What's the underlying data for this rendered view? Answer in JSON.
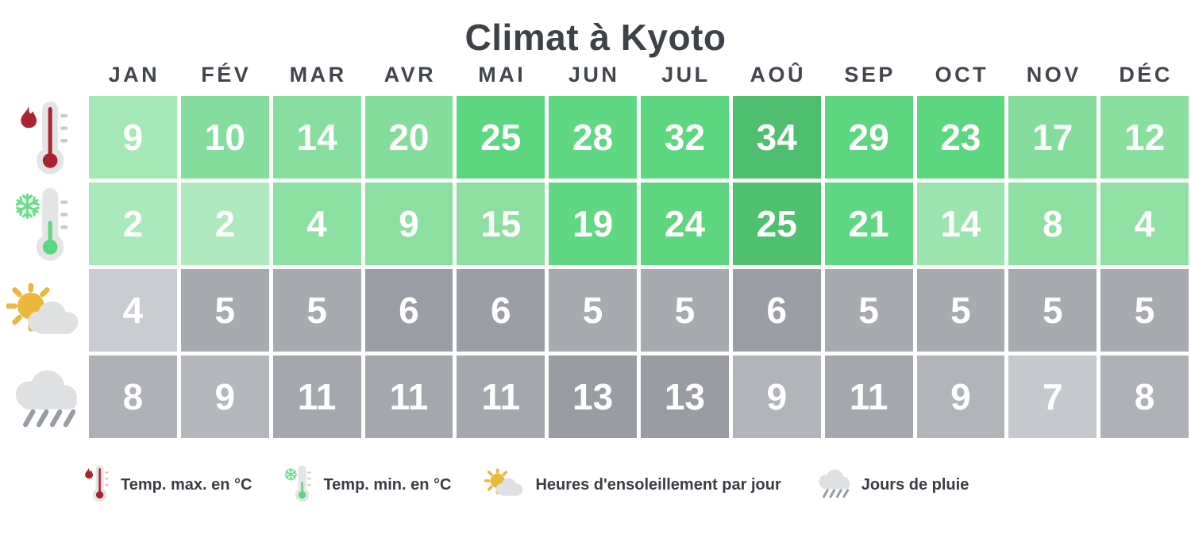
{
  "title": "Climat à Kyoto",
  "legend": {
    "items": [
      {
        "icon": "thermometer-hot-icon",
        "label": "Temp. max. en °C"
      },
      {
        "icon": "thermometer-cold-icon",
        "label": "Temp. min. en °C"
      },
      {
        "icon": "sun-cloud-icon",
        "label": "Heures d'ensoleillement par jour"
      },
      {
        "icon": "rain-cloud-icon",
        "label": "Jours de pluie"
      }
    ]
  },
  "colors": {
    "title_text": "#3d4248",
    "month_text": "#41464d",
    "cell_text": "#ffffff",
    "flame_red": "#a92430",
    "mercury_green": "#5bd67e",
    "snowflake_green": "#69df8c",
    "sun_yellow": "#e9b83d",
    "cloud_gray": "#dfe0e2",
    "rain_stroke": "#979da5",
    "thermometer_body": "#e4e4e6"
  },
  "chart_data": {
    "type": "heatmap",
    "title": "Climat à Kyoto",
    "categories": [
      "JAN",
      "FÉV",
      "MAR",
      "AVR",
      "MAI",
      "JUN",
      "JUL",
      "AOÛ",
      "SEP",
      "OCT",
      "NOV",
      "DÉC"
    ],
    "legend_position": "bottom",
    "series": [
      {
        "id": "temp-max",
        "name": "Temp. max. en °C",
        "icon": "thermometer-hot-icon",
        "values": [
          9,
          10,
          14,
          20,
          25,
          28,
          32,
          34,
          29,
          23,
          17,
          12
        ],
        "cell_colors": [
          "#a5e8b6",
          "#84dd9c",
          "#88de9e",
          "#85dd9c",
          "#5cd67f",
          "#60d782",
          "#5dd680",
          "#4fbe6f",
          "#5ed680",
          "#5dd680",
          "#85dd9c",
          "#8adf9f"
        ]
      },
      {
        "id": "temp-min",
        "name": "Temp. min. en °C",
        "icon": "thermometer-cold-icon",
        "values": [
          2,
          2,
          4,
          9,
          15,
          19,
          24,
          25,
          21,
          14,
          8,
          4
        ],
        "cell_colors": [
          "#a9e9ba",
          "#aeeabd",
          "#8bdfa0",
          "#8cdfa1",
          "#8ddfa1",
          "#60d782",
          "#5ed680",
          "#50bf70",
          "#5fd681",
          "#9ce4ae",
          "#8edfa2",
          "#90e0a4"
        ]
      },
      {
        "id": "sunshine-hours",
        "name": "Heures d'ensoleillement par jour",
        "icon": "sun-cloud-icon",
        "values": [
          4,
          5,
          5,
          6,
          6,
          5,
          5,
          6,
          5,
          5,
          5,
          5
        ],
        "cell_colors": [
          "#c9ccd0",
          "#a7aaaf",
          "#a7aaaf",
          "#9b9ea5",
          "#9b9ea5",
          "#a7aaaf",
          "#a7aaaf",
          "#9b9ea5",
          "#a7aaaf",
          "#a7aaaf",
          "#a7aaaf",
          "#a7aaaf"
        ]
      },
      {
        "id": "rain-days",
        "name": "Jours de pluie",
        "icon": "rain-cloud-icon",
        "values": [
          8,
          9,
          11,
          11,
          11,
          13,
          13,
          9,
          11,
          9,
          7,
          8
        ],
        "cell_colors": [
          "#aeb1b6",
          "#b4b7bb",
          "#a4a7ad",
          "#a4a7ad",
          "#a4a7ad",
          "#999da3",
          "#999da3",
          "#b1b4b9",
          "#a4a7ad",
          "#b1b4b9",
          "#c5c8cc",
          "#aeb1b6"
        ]
      }
    ]
  }
}
